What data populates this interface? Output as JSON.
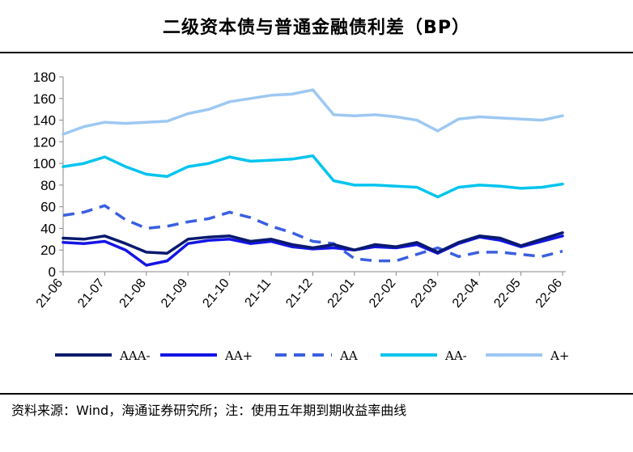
{
  "chart_data": {
    "type": "line",
    "title": "二级资本债与普通金融债利差（BP）",
    "source": "资料来源：Wind，海通证券研究所；注：使用五年期到期收益率曲线",
    "x_tick_labels": [
      "21-06",
      "21-07",
      "21-08",
      "21-09",
      "21-10",
      "21-11",
      "21-12",
      "22-01",
      "22-02",
      "22-03",
      "22-04",
      "22-05",
      "22-06"
    ],
    "ylim": [
      0,
      180
    ],
    "y_ticks": [
      0,
      20,
      40,
      60,
      80,
      100,
      120,
      140,
      160,
      180
    ],
    "grid": false,
    "legend_position": "bottom",
    "x": [
      "21-06",
      "21-06h",
      "21-07",
      "21-07h",
      "21-08",
      "21-08h",
      "21-09",
      "21-09h",
      "21-10",
      "21-10h",
      "21-11",
      "21-11h",
      "21-12",
      "21-12h",
      "22-01",
      "22-01h",
      "22-02",
      "22-02h",
      "22-03",
      "22-03h",
      "22-04",
      "22-04h",
      "22-05",
      "22-05h",
      "22-06"
    ],
    "series": [
      {
        "name": "AAA-",
        "color": "#0a1a6e",
        "dash": "solid",
        "values": [
          31,
          30,
          33,
          26,
          18,
          17,
          30,
          32,
          33,
          28,
          30,
          25,
          22,
          25,
          20,
          25,
          23,
          27,
          18,
          27,
          33,
          31,
          24,
          30,
          36
        ]
      },
      {
        "name": "AA+",
        "color": "#1515e6",
        "dash": "solid",
        "values": [
          27,
          26,
          28,
          20,
          6,
          10,
          26,
          29,
          30,
          26,
          28,
          23,
          21,
          22,
          20,
          23,
          22,
          25,
          17,
          26,
          32,
          29,
          23,
          28,
          33
        ]
      },
      {
        "name": "AA",
        "color": "#3b5fe0",
        "dash": "dashed",
        "values": [
          52,
          55,
          61,
          48,
          40,
          42,
          46,
          49,
          55,
          50,
          42,
          36,
          28,
          26,
          12,
          10,
          10,
          16,
          22,
          14,
          18,
          18,
          16,
          14,
          19
        ]
      },
      {
        "name": "AA-",
        "color": "#00c4ee",
        "dash": "solid",
        "values": [
          97,
          100,
          106,
          97,
          90,
          88,
          97,
          100,
          106,
          102,
          103,
          104,
          107,
          84,
          80,
          80,
          79,
          78,
          69,
          78,
          80,
          79,
          77,
          78,
          81
        ]
      },
      {
        "name": "A+",
        "color": "#9dc8f2",
        "dash": "solid",
        "values": [
          127,
          134,
          138,
          137,
          138,
          139,
          146,
          150,
          157,
          160,
          163,
          164,
          168,
          145,
          144,
          145,
          143,
          140,
          130,
          141,
          143,
          142,
          141,
          140,
          144
        ]
      }
    ]
  }
}
